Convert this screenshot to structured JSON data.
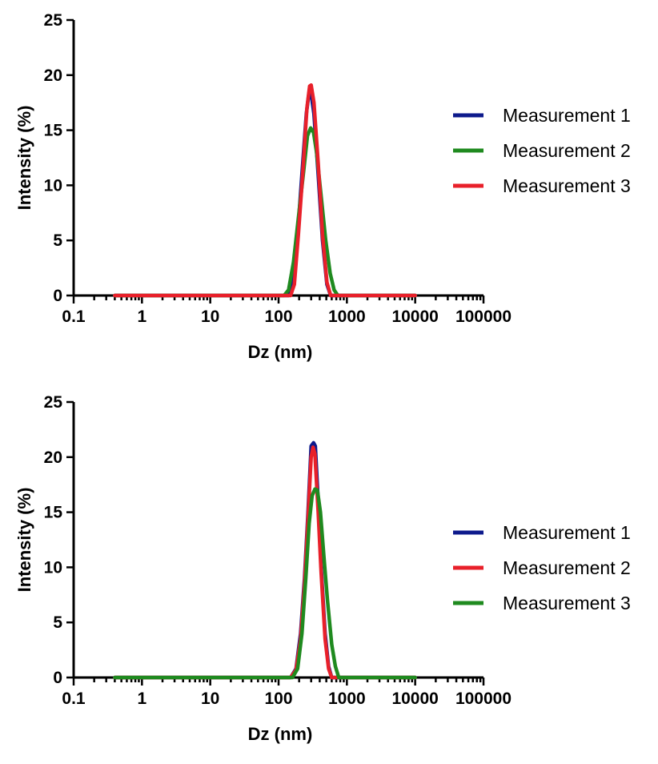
{
  "chart_data": [
    {
      "type": "line",
      "xlabel": "Dz (nm)",
      "ylabel": "Intensity (%)",
      "x_scale": "log",
      "xlim": [
        0.1,
        100000
      ],
      "ylim": [
        0,
        25
      ],
      "x_ticks": [
        "0.1",
        "1",
        "10",
        "100",
        "1000",
        "10000",
        "100000"
      ],
      "y_ticks": [
        "0",
        "5",
        "10",
        "15",
        "20",
        "25"
      ],
      "legend_position": "right",
      "series": [
        {
          "name": "Measurement 1",
          "color": "#0d1a8c",
          "x": [
            0.4,
            100,
            140,
            160,
            190,
            220,
            255,
            280,
            300,
            330,
            380,
            440,
            510,
            580,
            650,
            10000
          ],
          "y": [
            0,
            0,
            0,
            0.8,
            5.5,
            11,
            16.5,
            18.5,
            18.3,
            16.5,
            11,
            5,
            1,
            0,
            0,
            0
          ]
        },
        {
          "name": "Measurement 2",
          "color": "#1f8a1f",
          "x": [
            0.4,
            100,
            120,
            140,
            165,
            195,
            230,
            265,
            295,
            325,
            360,
            420,
            490,
            570,
            650,
            740,
            10000
          ],
          "y": [
            0,
            0,
            0,
            0.5,
            3,
            7,
            11,
            14.5,
            15.2,
            14.8,
            13,
            9,
            5,
            2,
            0.5,
            0,
            0
          ]
        },
        {
          "name": "Measurement 3",
          "color": "#e8202a",
          "x": [
            0.4,
            100,
            150,
            170,
            195,
            225,
            260,
            285,
            300,
            330,
            380,
            440,
            510,
            580,
            640,
            10000
          ],
          "y": [
            0,
            0,
            0,
            1,
            5.5,
            11,
            17,
            19,
            19.1,
            17.5,
            12,
            5.5,
            1.2,
            0,
            0,
            0
          ]
        }
      ]
    },
    {
      "type": "line",
      "xlabel": "Dz (nm)",
      "ylabel": "Intensity (%)",
      "x_scale": "log",
      "xlim": [
        0.1,
        100000
      ],
      "ylim": [
        0,
        25
      ],
      "x_ticks": [
        "0.1",
        "1",
        "10",
        "100",
        "1000",
        "10000",
        "100000"
      ],
      "y_ticks": [
        "0",
        "5",
        "10",
        "15",
        "20",
        "25"
      ],
      "legend_position": "right",
      "series": [
        {
          "name": "Measurement 1",
          "color": "#0d1a8c",
          "x": [
            0.4,
            100,
            150,
            180,
            210,
            240,
            270,
            300,
            325,
            345,
            380,
            420,
            480,
            540,
            600,
            10000
          ],
          "y": [
            0,
            0,
            0,
            0.8,
            4,
            9,
            15,
            21,
            21.3,
            21,
            16,
            10,
            4,
            1,
            0,
            0
          ]
        },
        {
          "name": "Measurement 2",
          "color": "#e8202a",
          "x": [
            0.4,
            100,
            150,
            180,
            210,
            240,
            270,
            300,
            320,
            340,
            380,
            420,
            480,
            540,
            600,
            10000
          ],
          "y": [
            0,
            0,
            0,
            0.7,
            3.5,
            8.5,
            14.5,
            20,
            20.9,
            20.3,
            15,
            9.5,
            3.5,
            0.8,
            0,
            0
          ]
        },
        {
          "name": "Measurement 3",
          "color": "#1f8a1f",
          "x": [
            0.4,
            100,
            160,
            190,
            220,
            250,
            280,
            310,
            340,
            370,
            410,
            460,
            520,
            600,
            680,
            760,
            10000
          ],
          "y": [
            0,
            0,
            0,
            0.8,
            4,
            9,
            14,
            16.5,
            17.1,
            17,
            15,
            11,
            7,
            3,
            1,
            0,
            0
          ]
        }
      ]
    }
  ]
}
